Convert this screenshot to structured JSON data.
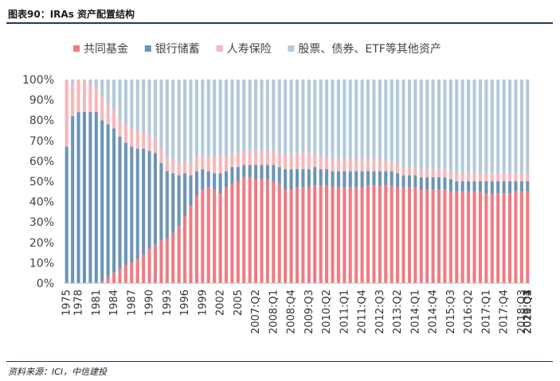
{
  "header": {
    "title": "图表90：IRAs 资产配置结构"
  },
  "footer": {
    "source": "资料来源：ICI，中信建投"
  },
  "chart_data": {
    "type": "bar",
    "stacked": true,
    "legend_position": "top",
    "ylim": [
      0,
      100
    ],
    "y_ticks": [
      "0%",
      "10%",
      "20%",
      "30%",
      "40%",
      "50%",
      "60%",
      "70%",
      "80%",
      "90%",
      "100%"
    ],
    "x_tick_labels": [
      "1975",
      "1978",
      "1981",
      "1984",
      "1987",
      "1990",
      "1993",
      "1996",
      "1999",
      "2002",
      "2005",
      "2007:Q2",
      "2008:Q1",
      "2008:Q4",
      "2009:Q3",
      "2010:Q2",
      "2011:Q1",
      "2011:Q4",
      "2012:Q3",
      "2013:Q2",
      "2014:Q1",
      "2014:Q4",
      "2015:Q3",
      "2016:Q2",
      "2017:Q1",
      "2017:Q4",
      "2018:Q3",
      "2019:Q2",
      "2020:Q1",
      "2020:Q4",
      "2021:Q3"
    ],
    "colors": {
      "共同基金": "#f07b82",
      "银行储蓄": "#6b95b8",
      "人寿保险": "#f7b7b9",
      "股票、债券、ETF等其他资产": "#b3c9dc"
    },
    "series_stack": [
      {
        "name": "共同基金",
        "values": [
          0,
          0,
          0,
          0,
          0,
          0,
          1,
          3,
          5,
          7,
          9,
          10,
          12,
          14,
          17,
          19,
          21,
          22,
          25,
          28,
          33,
          38,
          43,
          46,
          47,
          46,
          44,
          47,
          49,
          50,
          52,
          52,
          51,
          51,
          51,
          50,
          49,
          46,
          46,
          47,
          47,
          47,
          48,
          48,
          48,
          47,
          47,
          47,
          47,
          47,
          47,
          48,
          48,
          48,
          48,
          48,
          47,
          47,
          47,
          47,
          46,
          46,
          46,
          46,
          46,
          45,
          45,
          45,
          45,
          45,
          45,
          44,
          44,
          44,
          44,
          44,
          45,
          45,
          45
        ]
      },
      {
        "name": "银行储蓄",
        "values": [
          67,
          82,
          84,
          84,
          84,
          84,
          79,
          75,
          71,
          65,
          60,
          57,
          54,
          52,
          48,
          45,
          38,
          33,
          29,
          25,
          21,
          15,
          12,
          10,
          8,
          8,
          10,
          8,
          8,
          7,
          6,
          6,
          7,
          7,
          7,
          8,
          8,
          10,
          10,
          9,
          9,
          9,
          9,
          8,
          8,
          8,
          8,
          8,
          8,
          8,
          8,
          7,
          7,
          7,
          7,
          7,
          7,
          6,
          6,
          6,
          6,
          6,
          6,
          6,
          6,
          6,
          5,
          5,
          5,
          5,
          5,
          6,
          6,
          6,
          6,
          6,
          5,
          5,
          5
        ]
      },
      {
        "name": "人寿保险",
        "values": [
          33,
          16,
          16,
          16,
          14,
          12,
          11,
          10,
          9,
          9,
          9,
          9,
          9,
          8,
          8,
          7,
          7,
          7,
          7,
          6,
          6,
          6,
          7,
          7,
          7,
          8,
          9,
          7,
          7,
          7,
          7,
          7,
          7,
          7,
          7,
          7,
          7,
          7,
          7,
          8,
          8,
          8,
          6,
          6,
          6,
          6,
          6,
          6,
          6,
          6,
          6,
          6,
          6,
          6,
          5,
          5,
          5,
          4,
          4,
          4,
          4,
          4,
          4,
          4,
          4,
          4,
          4,
          4,
          4,
          4,
          4,
          4,
          4,
          4,
          4,
          4,
          4,
          4,
          4
        ]
      },
      {
        "name": "股票、债券、ETF等其他资产",
        "values": [
          0,
          2,
          0,
          0,
          2,
          4,
          9,
          12,
          15,
          19,
          22,
          24,
          25,
          26,
          27,
          29,
          34,
          38,
          39,
          41,
          40,
          41,
          38,
          37,
          38,
          38,
          37,
          38,
          36,
          36,
          35,
          35,
          35,
          35,
          35,
          35,
          36,
          37,
          37,
          36,
          36,
          36,
          37,
          38,
          38,
          39,
          39,
          39,
          39,
          39,
          39,
          39,
          39,
          39,
          40,
          40,
          41,
          43,
          43,
          43,
          44,
          44,
          44,
          44,
          44,
          45,
          46,
          46,
          46,
          46,
          46,
          46,
          46,
          46,
          46,
          46,
          46,
          46,
          46
        ]
      }
    ]
  }
}
